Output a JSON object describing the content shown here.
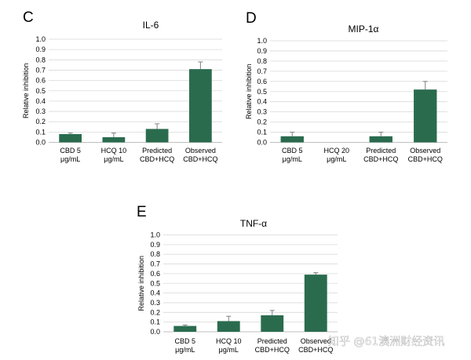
{
  "chart_data": [
    {
      "panel": "C",
      "type": "bar",
      "title": "IL-6",
      "ylabel": "Relative inhibition",
      "ylim": [
        0,
        1.0
      ],
      "yticks": [
        "0.0",
        "0.1",
        "0.2",
        "0.3",
        "0.4",
        "0.5",
        "0.6",
        "0.7",
        "0.8",
        "0.9",
        "1.0"
      ],
      "categories": [
        [
          "CBD 5",
          "μg/mL"
        ],
        [
          "HCQ 10",
          "μg/mL"
        ],
        [
          "Predicted",
          "CBD+HCQ"
        ],
        [
          "Observed",
          "CBD+HCQ"
        ]
      ],
      "values": [
        0.08,
        0.05,
        0.13,
        0.71
      ],
      "errors": [
        0.01,
        0.04,
        0.05,
        0.07
      ],
      "color": "#2a6b4e",
      "grid": true
    },
    {
      "panel": "D",
      "type": "bar",
      "title": "MIP-1α",
      "ylabel": "Relative inhibition",
      "ylim": [
        0,
        1.0
      ],
      "yticks": [
        "0.0",
        "0.1",
        "0.2",
        "0.3",
        "0.4",
        "0.5",
        "0.6",
        "0.7",
        "0.8",
        "0.9",
        "1.0"
      ],
      "categories": [
        [
          "CBD 5",
          "μg/mL"
        ],
        [
          "HCQ 20",
          "μg/mL"
        ],
        [
          "Predicted",
          "CBD+HCQ"
        ],
        [
          "Observed",
          "CBD+HCQ"
        ]
      ],
      "values": [
        0.06,
        0.0,
        0.06,
        0.52
      ],
      "errors": [
        0.04,
        0.0,
        0.04,
        0.08
      ],
      "color": "#2a6b4e",
      "grid": true
    },
    {
      "panel": "E",
      "type": "bar",
      "title": "TNF-α",
      "ylabel": "Relative inhibition",
      "ylim": [
        0,
        1.0
      ],
      "yticks": [
        "0.0",
        "0.1",
        "0.2",
        "0.3",
        "0.4",
        "0.5",
        "0.6",
        "0.7",
        "0.8",
        "0.9",
        "1.0"
      ],
      "categories": [
        [
          "CBD 5",
          "μg/mL"
        ],
        [
          "HCQ 10",
          "μg/mL"
        ],
        [
          "Predicted",
          "CBD+HCQ"
        ],
        [
          "Observed",
          "CBD+HCQ"
        ]
      ],
      "values": [
        0.06,
        0.11,
        0.17,
        0.59
      ],
      "errors": [
        0.01,
        0.05,
        0.05,
        0.02
      ],
      "color": "#2a6b4e",
      "grid": true
    }
  ],
  "watermark": "知乎 @61澳洲财经资讯",
  "colors": {
    "bar": "#2a6b4e",
    "grid": "#d9d9d9",
    "axis": "#bfbfbf",
    "error": "#7f7f7f"
  }
}
